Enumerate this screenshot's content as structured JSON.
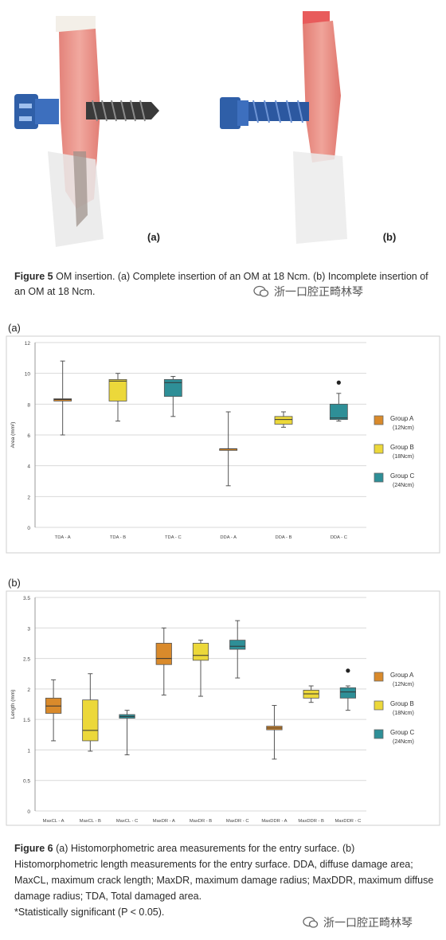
{
  "figure5": {
    "label_a": "(a)",
    "label_b": "(b)",
    "caption_title": "Figure 5",
    "caption_text": " OM insertion. (a) Complete insertion of an OM at 18 Ncm. (b) Incomplete insertion of an OM at 18 Ncm."
  },
  "figure6": {
    "caption_title": "Figure 6",
    "caption_text": " (a) Histomorphometric area measurements for the entry surface. (b) Histomorphometric length measurements for the entry surface. DDA, diffuse damage area; MaxCL, maximum crack length; MaxDR, maximum damage radius; MaxDDR, maximum diffuse damage radius; TDA, Total damaged area.",
    "caption_note": "*Statistically significant (P < 0.05)."
  },
  "watermark": "浙一口腔正畸林琴",
  "colors": {
    "groupA": "#d98a2b",
    "groupB": "#ecd83a",
    "groupC": "#2e8f97"
  },
  "chart_data": [
    {
      "type": "box",
      "panel_label": "(a)",
      "ylabel": "Area (mm²)",
      "ylim": [
        0,
        12
      ],
      "yticks": [
        0,
        2,
        4,
        6,
        8,
        10,
        12
      ],
      "grid": true,
      "legend_position": "right",
      "legend": [
        {
          "name": "Group A",
          "sub": "(12Ncm)"
        },
        {
          "name": "Group B",
          "sub": "(18Ncm)"
        },
        {
          "name": "Group C",
          "sub": "(24Ncm)"
        }
      ],
      "categories": [
        "TDA - A",
        "TDA - B",
        "TDA - C",
        "DDA - A",
        "DDA - B",
        "DDA - C"
      ],
      "groups": [
        "A",
        "B",
        "C",
        "A",
        "B",
        "C"
      ],
      "boxes": [
        {
          "min": 6.0,
          "q1": 8.2,
          "median": 8.3,
          "q3": 8.35,
          "max": 10.8
        },
        {
          "min": 6.9,
          "q1": 8.2,
          "median": 9.5,
          "q3": 9.6,
          "max": 10.0
        },
        {
          "min": 7.2,
          "q1": 8.5,
          "median": 9.4,
          "q3": 9.6,
          "max": 9.8
        },
        {
          "min": 2.7,
          "q1": 5.1,
          "median": 5.1,
          "q3": 5.1,
          "max": 7.5
        },
        {
          "min": 6.5,
          "q1": 6.7,
          "median": 7.0,
          "q3": 7.2,
          "max": 7.5
        },
        {
          "min": 6.9,
          "q1": 7.0,
          "median": 7.1,
          "q3": 8.0,
          "max": 8.7,
          "outliers": [
            9.4
          ]
        }
      ]
    },
    {
      "type": "box",
      "panel_label": "(b)",
      "ylabel": "Length (mm)",
      "ylim": [
        0,
        3.5
      ],
      "yticks": [
        0,
        0.5,
        1,
        1.5,
        2,
        2.5,
        3,
        3.5
      ],
      "grid": true,
      "legend_position": "right",
      "legend": [
        {
          "name": "Group A",
          "sub": "(12Ncm)"
        },
        {
          "name": "Group B",
          "sub": "(18Ncm)"
        },
        {
          "name": "Group C",
          "sub": "(24Ncm)"
        }
      ],
      "categories": [
        "MaxCL - A",
        "MaxCL - B",
        "MaxCL - C",
        "MaxDR - A",
        "MaxDR - B",
        "MaxDR - C",
        "MaxDDR - A",
        "MaxDDR - B",
        "MaxDDR - C"
      ],
      "groups": [
        "A",
        "B",
        "C",
        "A",
        "B",
        "C",
        "A",
        "B",
        "C"
      ],
      "boxes": [
        {
          "min": 1.15,
          "q1": 1.6,
          "median": 1.72,
          "q3": 1.85,
          "max": 2.15
        },
        {
          "min": 0.98,
          "q1": 1.15,
          "median": 1.32,
          "q3": 1.82,
          "max": 2.25
        },
        {
          "min": 0.92,
          "q1": 1.52,
          "median": 1.55,
          "q3": 1.58,
          "max": 1.65
        },
        {
          "min": 1.9,
          "q1": 2.4,
          "median": 2.5,
          "q3": 2.75,
          "max": 3.0
        },
        {
          "min": 1.88,
          "q1": 2.47,
          "median": 2.55,
          "q3": 2.75,
          "max": 2.8
        },
        {
          "min": 2.18,
          "q1": 2.65,
          "median": 2.7,
          "q3": 2.8,
          "max": 3.12
        },
        {
          "min": 0.85,
          "q1": 1.33,
          "median": 1.36,
          "q3": 1.39,
          "max": 1.73
        },
        {
          "min": 1.78,
          "q1": 1.85,
          "median": 1.92,
          "q3": 1.98,
          "max": 2.05
        },
        {
          "min": 1.65,
          "q1": 1.85,
          "median": 1.95,
          "q3": 2.02,
          "max": 2.05,
          "outliers": [
            2.3
          ]
        }
      ]
    }
  ]
}
